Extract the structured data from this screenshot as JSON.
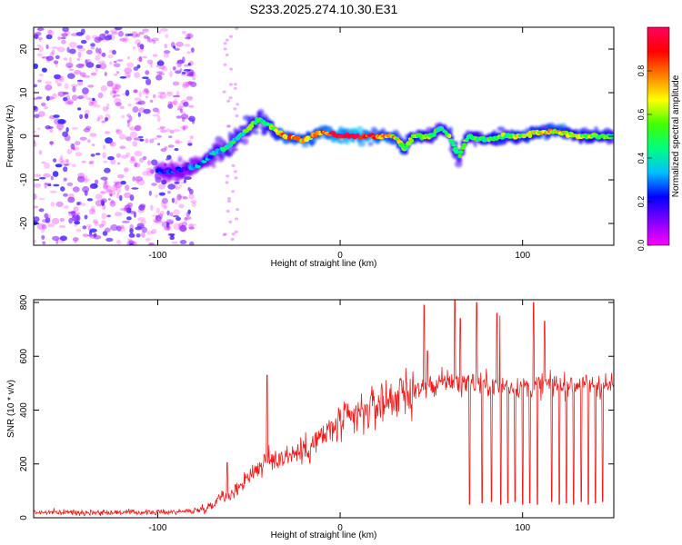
{
  "title": "S233.2025.274.10.30.E31",
  "chart_data": [
    {
      "type": "heatmap",
      "title": "S233.2025.274.10.30.E31",
      "xlabel": "Height of straight line (km)",
      "ylabel": "Frequency (Hz)",
      "xlim": [
        -168,
        150
      ],
      "ylim": [
        -25,
        25
      ],
      "xticks": [
        -100,
        0,
        100
      ],
      "yticks": [
        -20,
        -10,
        0,
        10,
        20
      ],
      "colorbar": {
        "label": "Normalized spectral amplitude",
        "range": [
          0,
          1
        ],
        "ticks": [
          0.0,
          0.2,
          0.4,
          0.6,
          0.8
        ],
        "colors": [
          "#ff00ff",
          "#8000ff",
          "#0000ff",
          "#00c0ff",
          "#00ff80",
          "#40ff00",
          "#ffff00",
          "#ff8000",
          "#ff0000",
          "#ff0060"
        ]
      },
      "ridge": {
        "x": [
          -100,
          -90,
          -80,
          -75,
          -70,
          -60,
          -55,
          -50,
          -45,
          -40,
          -35,
          -30,
          -20,
          -10,
          0,
          10,
          20,
          30,
          35,
          40,
          50,
          55,
          60,
          65,
          70,
          80,
          90,
          100,
          110,
          120,
          130,
          140,
          150
        ],
        "y": [
          -8,
          -8,
          -7,
          -6,
          -4,
          -2,
          0,
          2,
          4,
          3,
          1,
          0,
          -1,
          1,
          0,
          0,
          0,
          0,
          -3,
          0,
          0,
          2,
          0,
          -5,
          0,
          -1,
          0,
          0,
          1,
          1,
          0,
          0,
          0
        ],
        "amplitude": [
          0.2,
          0.2,
          0.25,
          0.3,
          0.35,
          0.4,
          0.45,
          0.5,
          0.45,
          0.5,
          0.6,
          0.8,
          0.7,
          0.75,
          0.95,
          0.95,
          0.8,
          0.7,
          0.55,
          0.6,
          0.5,
          0.45,
          0.55,
          0.4,
          0.55,
          0.5,
          0.55,
          0.6,
          0.65,
          0.7,
          0.6,
          0.55,
          0.5
        ]
      },
      "noise_region_x": [
        -168,
        -80
      ]
    },
    {
      "type": "line",
      "xlabel": "Height of straight line (km)",
      "ylabel": "SNR (10 * v/v)",
      "xlim": [
        -168,
        150
      ],
      "ylim": [
        0,
        810
      ],
      "xticks": [
        -100,
        0,
        100
      ],
      "yticks": [
        0,
        200,
        400,
        600,
        800
      ],
      "series": [
        {
          "name": "SNR",
          "color": "#ee1c1c",
          "envelope_x": [
            -168,
            -100,
            -80,
            -70,
            -65,
            -60,
            -50,
            -40,
            -30,
            -20,
            -10,
            0,
            10,
            20,
            30,
            40,
            50,
            60,
            70,
            80,
            90,
            100,
            110,
            120,
            130,
            140,
            150
          ],
          "envelope_y": [
            20,
            20,
            25,
            45,
            90,
            80,
            160,
            210,
            230,
            250,
            300,
            350,
            380,
            420,
            450,
            470,
            490,
            510,
            500,
            495,
            490,
            485,
            490,
            490,
            495,
            490,
            490
          ],
          "spikes_x": [
            -62,
            -40,
            46,
            48,
            63,
            66,
            75,
            86,
            106,
            112
          ],
          "spikes_y": [
            205,
            530,
            790,
            620,
            810,
            740,
            800,
            760,
            800,
            730
          ],
          "dips_x": [
            46,
            71,
            78,
            83,
            88,
            92,
            96,
            100,
            104,
            108,
            112,
            116,
            120,
            124,
            128,
            132,
            136,
            140,
            144
          ],
          "dips_y": [
            60,
            50,
            55,
            60,
            50,
            55,
            60,
            50,
            55,
            50,
            55,
            60,
            50,
            55,
            50,
            60,
            50,
            55,
            60
          ]
        }
      ]
    }
  ]
}
